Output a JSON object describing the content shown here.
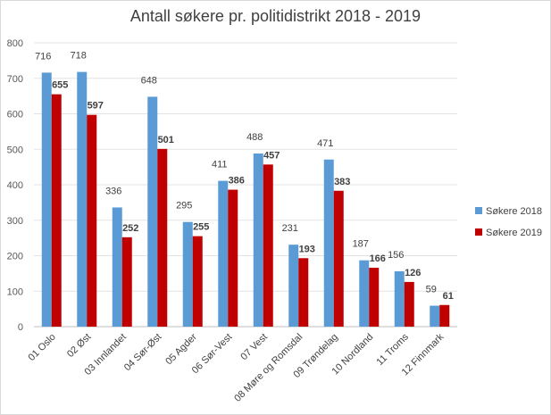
{
  "chart_data": {
    "type": "bar",
    "title": "Antall søkere pr. politidistrikt 2018 - 2019",
    "xlabel": "",
    "ylabel": "",
    "ylim": [
      0,
      800
    ],
    "y_ticks": [
      "0",
      "100",
      "200",
      "300",
      "400",
      "500",
      "600",
      "700",
      "800"
    ],
    "grid": true,
    "legend_position": "right",
    "categories": [
      "01 Oslo",
      "02 Øst",
      "03 Innlandet",
      "04 Sør-Øst",
      "05 Agder",
      "06 Sør-Vest",
      "07 Vest",
      "08 Møre og Romsdal",
      "09 Trøndelag",
      "10 Nordland",
      "11 Troms",
      "12 Finnmark"
    ],
    "series": [
      {
        "name": "Søkere 2018",
        "color": "#5b9bd5",
        "values": [
          716,
          718,
          336,
          648,
          295,
          411,
          488,
          231,
          471,
          187,
          156,
          59
        ]
      },
      {
        "name": "Søkere 2019",
        "color": "#c00000",
        "values": [
          655,
          597,
          252,
          501,
          255,
          386,
          457,
          193,
          383,
          166,
          126,
          61
        ]
      }
    ]
  }
}
